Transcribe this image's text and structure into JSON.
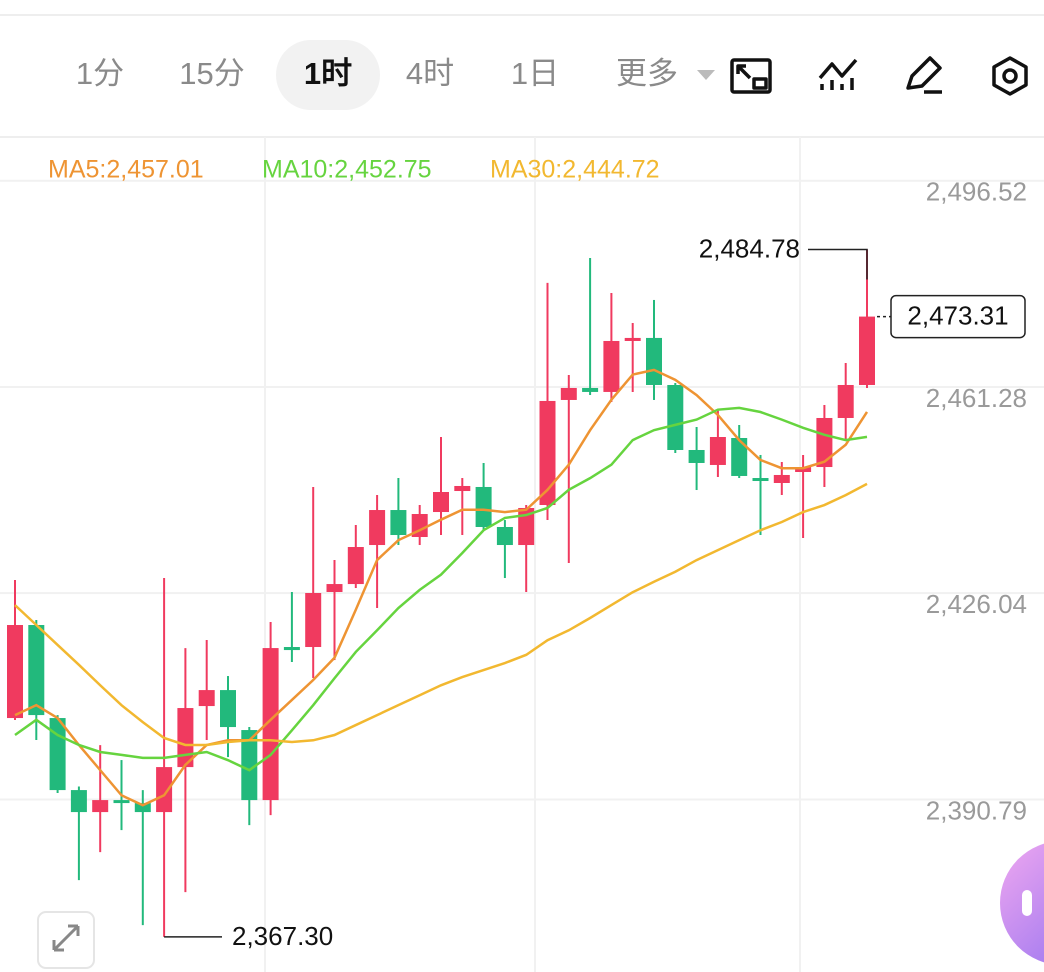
{
  "toolbar": {
    "tabs": [
      "1分",
      "15分",
      "1时",
      "4时",
      "1日",
      "更多"
    ],
    "selected": 2
  },
  "chart_data": {
    "type": "candlestick",
    "up_color": "#f03a5f",
    "down_color": "#22b97c",
    "ylim": [
      2361.3,
      2504
    ],
    "yticks": [
      {
        "value": 2496.52,
        "label": "2,496.52"
      },
      {
        "value": 2461.28,
        "label": "2,461.28"
      },
      {
        "value": 2426.04,
        "label": "2,426.04"
      },
      {
        "value": 2390.79,
        "label": "2,390.79"
      }
    ],
    "grid": true,
    "open": [
      2404.7,
      2420.6,
      2404.7,
      2392.39,
      2388.63,
      2390.68,
      2390.17,
      2388.63,
      2396.32,
      2406.75,
      2409.48,
      2402.65,
      2390.68,
      2416.84,
      2416.84,
      2426.24,
      2427.6,
      2434.27,
      2440.25,
      2435.64,
      2439.91,
      2443.5,
      2444.19,
      2437.35,
      2434.27,
      2441.11,
      2459.06,
      2461.11,
      2460.43,
      2469.14,
      2469.66,
      2461.62,
      2450.51,
      2447.95,
      2452.56,
      2445.72,
      2444.87,
      2446.75,
      2447.6,
      2455.98,
      2461.62
    ],
    "high": [
      2428.29,
      2421.45,
      2405.21,
      2393.0,
      2400.08,
      2397.52,
      2392.39,
      2428.63,
      2416.66,
      2418.03,
      2411.88,
      2403.16,
      2421.11,
      2426.24,
      2444.19,
      2431.71,
      2437.69,
      2442.82,
      2445.72,
      2441.11,
      2452.73,
      2445.72,
      2448.29,
      2438.54,
      2441.11,
      2479.06,
      2463.33,
      2483.33,
      2477.35,
      2472.22,
      2476.15,
      2461.96,
      2454.44,
      2457.35,
      2454.78,
      2449.66,
      2448.46,
      2449.66,
      2458.2,
      2465.38,
      2484.78
    ],
    "low": [
      2404.36,
      2400.94,
      2391.9,
      2377.01,
      2381.79,
      2385.55,
      2369.31,
      2367.3,
      2374.96,
      2400.94,
      2398.03,
      2386.41,
      2388.12,
      2414.27,
      2411.54,
      2414.61,
      2426.92,
      2423.5,
      2434.27,
      2434.27,
      2435.98,
      2435.98,
      2436.84,
      2428.63,
      2426.24,
      2438.54,
      2431.19,
      2459.91,
      2458.72,
      2460.43,
      2459.06,
      2450.0,
      2443.67,
      2445.9,
      2445.72,
      2435.98,
      2442.82,
      2435.47,
      2444.19,
      2452.22,
      2461.11
    ],
    "close": [
      2420.6,
      2405.21,
      2392.39,
      2388.63,
      2390.68,
      2390.17,
      2388.63,
      2396.32,
      2406.41,
      2409.48,
      2403.16,
      2390.68,
      2416.66,
      2416.32,
      2426.07,
      2427.6,
      2433.93,
      2440.25,
      2435.98,
      2439.57,
      2443.33,
      2444.36,
      2437.35,
      2434.27,
      2440.6,
      2458.89,
      2461.11,
      2460.43,
      2469.14,
      2469.66,
      2461.62,
      2450.51,
      2448.29,
      2452.73,
      2446.07,
      2445.21,
      2446.24,
      2447.6,
      2455.98,
      2461.62,
      2473.31
    ],
    "series": [
      {
        "name": "MA5:2,457.01",
        "color": "#ee9433",
        "values": [
          2405.2,
          2406.9,
          2404.7,
          2400.1,
          2395.8,
          2391.5,
          2389.8,
          2391.5,
          2396.7,
          2400.1,
          2400.9,
          2400.9,
          2404.4,
          2407.8,
          2411.2,
          2415.0,
          2423.2,
          2431.7,
          2435.1,
          2436.8,
          2438.6,
          2440.3,
          2440.3,
          2439.9,
          2440.3,
          2443.7,
          2448.0,
          2453.9,
          2459.1,
          2463.4,
          2464.2,
          2462.5,
          2459.9,
          2456.5,
          2452.2,
          2448.8,
          2447.4,
          2447.4,
          2448.5,
          2451.4,
          2457.01
        ]
      },
      {
        "name": "MA10:2,452.75",
        "color": "#66d43f",
        "values": [
          2401.8,
          2404.4,
          2401.8,
          2400.1,
          2398.9,
          2398.4,
          2397.9,
          2397.9,
          2398.4,
          2398.9,
          2397.5,
          2395.8,
          2398.4,
          2402.6,
          2406.9,
          2411.5,
          2416.0,
          2419.7,
          2423.5,
          2426.6,
          2429.2,
          2432.9,
          2436.8,
          2438.9,
          2439.4,
          2440.6,
          2443.7,
          2445.7,
          2448.0,
          2452.2,
          2453.9,
          2454.8,
          2455.7,
          2457.4,
          2457.7,
          2457.0,
          2455.7,
          2454.3,
          2453.1,
          2452.2,
          2452.75
        ]
      },
      {
        "name": "MA30:2,444.72",
        "color": "#f2b830",
        "values": [
          2424.0,
          2420.6,
          2417.2,
          2413.8,
          2410.3,
          2406.9,
          2404.0,
          2401.3,
          2400.1,
          2400.1,
          2400.6,
          2400.9,
          2400.9,
          2400.6,
          2400.9,
          2401.8,
          2403.5,
          2405.2,
          2406.9,
          2408.6,
          2410.3,
          2411.7,
          2412.9,
          2414.1,
          2415.5,
          2418.0,
          2419.7,
          2421.8,
          2424.0,
          2426.2,
          2428.0,
          2429.7,
          2431.7,
          2433.4,
          2435.1,
          2436.8,
          2438.2,
          2439.9,
          2441.1,
          2442.8,
          2444.72
        ]
      }
    ],
    "annotations": [
      {
        "label": "2,484.78",
        "value": 2484.78,
        "index": 40,
        "kind": "high"
      },
      {
        "label": "2,367.30",
        "value": 2367.3,
        "index": 7,
        "kind": "low"
      },
      {
        "label": "2,473.31",
        "value": 2473.31,
        "index": 40,
        "kind": "last"
      }
    ]
  }
}
